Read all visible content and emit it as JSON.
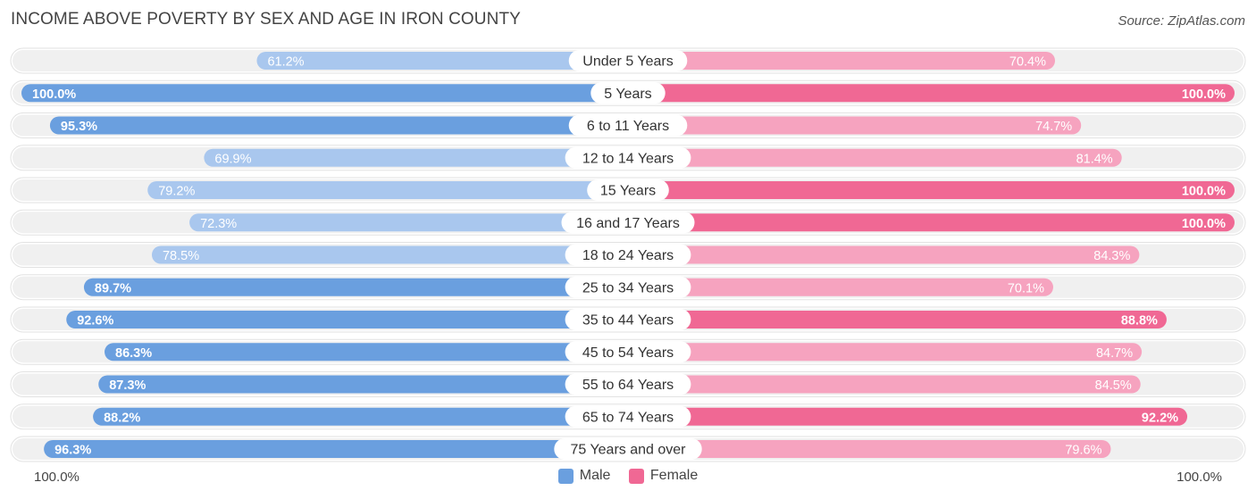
{
  "title": "INCOME ABOVE POVERTY BY SEX AND AGE IN IRON COUNTY",
  "source": "Source: ZipAtlas.com",
  "axis": {
    "left_label": "100.0%",
    "right_label": "100.0%"
  },
  "legend": {
    "male_label": "Male",
    "female_label": "Female"
  },
  "colors": {
    "male_strong": "#6a9fdf",
    "male_light": "#a9c7ee",
    "female_strong": "#f06894",
    "female_light": "#f6a3bf",
    "track": "#f0f0f0"
  },
  "chart_data": {
    "type": "bar",
    "orientation": "horizontal-diverging",
    "xlim": [
      0,
      100
    ],
    "categories": [
      "Under 5 Years",
      "5 Years",
      "6 to 11 Years",
      "12 to 14 Years",
      "15 Years",
      "16 and 17 Years",
      "18 to 24 Years",
      "25 to 34 Years",
      "35 to 44 Years",
      "45 to 54 Years",
      "55 to 64 Years",
      "65 to 74 Years",
      "75 Years and over"
    ],
    "series": [
      {
        "name": "Male",
        "values": [
          61.2,
          100.0,
          95.3,
          69.9,
          79.2,
          72.3,
          78.5,
          89.7,
          92.6,
          86.3,
          87.3,
          88.2,
          96.3
        ],
        "labels": [
          "61.2%",
          "100.0%",
          "95.3%",
          "69.9%",
          "79.2%",
          "72.3%",
          "78.5%",
          "89.7%",
          "92.6%",
          "86.3%",
          "87.3%",
          "88.2%",
          "96.3%"
        ]
      },
      {
        "name": "Female",
        "values": [
          70.4,
          100.0,
          74.7,
          81.4,
          100.0,
          100.0,
          84.3,
          70.1,
          88.8,
          84.7,
          84.5,
          92.2,
          79.6
        ],
        "labels": [
          "70.4%",
          "100.0%",
          "74.7%",
          "81.4%",
          "100.0%",
          "100.0%",
          "84.3%",
          "70.1%",
          "88.8%",
          "84.7%",
          "84.5%",
          "92.2%",
          "79.6%"
        ]
      }
    ],
    "legend_position": "bottom-center"
  }
}
